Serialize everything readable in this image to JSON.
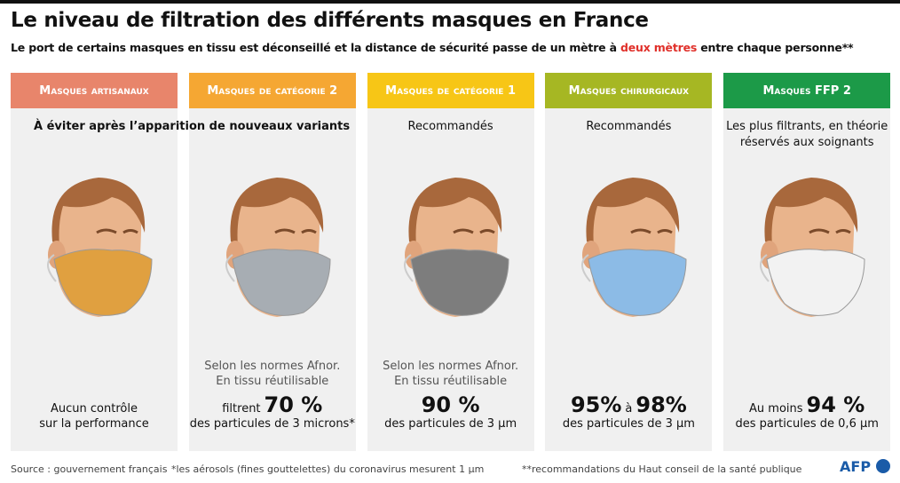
{
  "header": {
    "title": "Le niveau de filtration des différents masques en France",
    "subtitle": {
      "before": "Le port de certains masques en tissu est déconseillé et la distance de sécurité passe de un mètre à",
      "highlight": "deux mètres",
      "after": "entre chaque personne**"
    }
  },
  "columns": [
    {
      "header": "Masques artisanaux",
      "color": "#e8856b",
      "mask_color": "#e0a040",
      "top": [
        "À éviter après l’apparition de nouveaux variants"
      ],
      "note": [],
      "figure": [],
      "caption": [
        "Aucun contrôle",
        "sur la performance"
      ]
    },
    {
      "header": "Masques de catégorie 2",
      "color": "#f5a733",
      "mask_color": "#a7adb3",
      "top": [],
      "note": [
        "Selon les normes Afnor.",
        "En tissu réutilisable"
      ],
      "figure": [
        {
          "text": "filtrent",
          "big": false
        },
        {
          "text": "70 %",
          "big": true
        }
      ],
      "caption": [
        "des particules de 3 microns*"
      ]
    },
    {
      "header": "Masques de catégorie 1",
      "color": "#f7c616",
      "mask_color": "#7d7d7d",
      "top": [
        "Recommandés"
      ],
      "note": [
        "Selon les normes Afnor.",
        "En tissu réutilisable"
      ],
      "figure": [
        {
          "text": "90 %",
          "big": true
        }
      ],
      "caption": [
        "des particules de 3 µm"
      ]
    },
    {
      "header": "Masques chirurgicaux",
      "color": "#a6b723",
      "mask_color": "#8cbbe6",
      "top": [
        "Recommandés"
      ],
      "note": [],
      "figure": [
        {
          "text": "95%",
          "big": true
        },
        {
          "text": "à",
          "big": false
        },
        {
          "text": "98%",
          "big": true
        }
      ],
      "caption": [
        "des particules de 3 µm"
      ]
    },
    {
      "header": "Masques FFP 2",
      "color": "#1c9a48",
      "mask_color": "#f2f2f2",
      "top": [
        "Les plus filtrants, en théorie",
        "réservés aux soignants"
      ],
      "note": [],
      "figure": [
        {
          "text": "Au moins",
          "big": false
        },
        {
          "text": "94 %",
          "big": true
        }
      ],
      "caption": [
        "des particules de 0,6 µm"
      ]
    }
  ],
  "footer": {
    "source": "Source : gouvernement français",
    "note1": "*les aérosols (fines gouttelettes) du coronavirus mesurent 1 µm",
    "note2": "**recommandations du Haut conseil de la santé publique",
    "logo": "AFP"
  }
}
